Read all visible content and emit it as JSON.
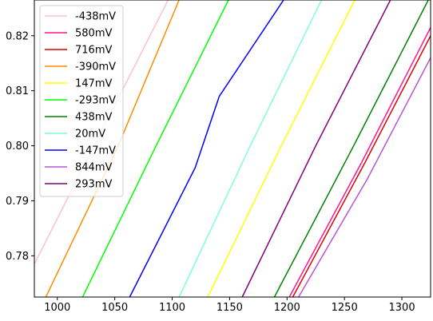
{
  "chart_data": {
    "type": "line",
    "title": "",
    "xlabel": "",
    "ylabel": "",
    "xlim": [
      980,
      1325
    ],
    "ylim": [
      0.7725,
      0.8265
    ],
    "xticks": [
      1000,
      1050,
      1100,
      1150,
      1200,
      1250,
      1300
    ],
    "yticks": [
      0.78,
      0.79,
      0.8,
      0.81,
      0.82
    ],
    "ytick_labels": [
      "0.78",
      "0.79",
      "0.80",
      "0.81",
      "0.82"
    ],
    "grid": false,
    "legend_position": "top-left",
    "series": [
      {
        "name": "-438mV",
        "color": "#ffc0cb",
        "x": [
          980,
          1032,
          1105
        ],
        "y": [
          0.7785,
          0.8,
          0.83
        ]
      },
      {
        "name": "580mV",
        "color": "#ff1493",
        "x": [
          1202,
          1265,
          1325
        ],
        "y": [
          0.7725,
          0.797,
          0.8215
        ]
      },
      {
        "name": "716mV",
        "color": "#e00000",
        "x": [
          1205,
          1268,
          1325
        ],
        "y": [
          0.7725,
          0.797,
          0.82
        ]
      },
      {
        "name": "-390mV",
        "color": "#ff8c00",
        "x": [
          990,
          1053,
          1106
        ],
        "y": [
          0.7725,
          0.8,
          0.8265
        ]
      },
      {
        "name": "147mV",
        "color": "#ffff00",
        "x": [
          1131,
          1195,
          1259
        ],
        "y": [
          0.7725,
          0.8,
          0.8265
        ]
      },
      {
        "name": "-293mV",
        "color": "#00ff00",
        "x": [
          1022,
          1086,
          1149
        ],
        "y": [
          0.7725,
          0.8,
          0.8265
        ]
      },
      {
        "name": "438mV",
        "color": "#008000",
        "x": [
          1189,
          1258,
          1323
        ],
        "y": [
          0.7725,
          0.8,
          0.8265
        ]
      },
      {
        "name": "20mV",
        "color": "#7fffd4",
        "x": [
          1106,
          1168,
          1230
        ],
        "y": [
          0.7725,
          0.8,
          0.8265
        ]
      },
      {
        "name": "-147mV",
        "color": "#0000ff",
        "x": [
          1063,
          1120,
          1141,
          1197
        ],
        "y": [
          0.7725,
          0.796,
          0.809,
          0.8265
        ]
      },
      {
        "name": "844mV",
        "color": "#ba55d3",
        "x": [
          1210,
          1270,
          1325
        ],
        "y": [
          0.7725,
          0.794,
          0.816
        ]
      },
      {
        "name": "293mV",
        "color": "#800080",
        "x": [
          1161,
          1225,
          1290
        ],
        "y": [
          0.7725,
          0.8,
          0.8265
        ]
      }
    ]
  }
}
